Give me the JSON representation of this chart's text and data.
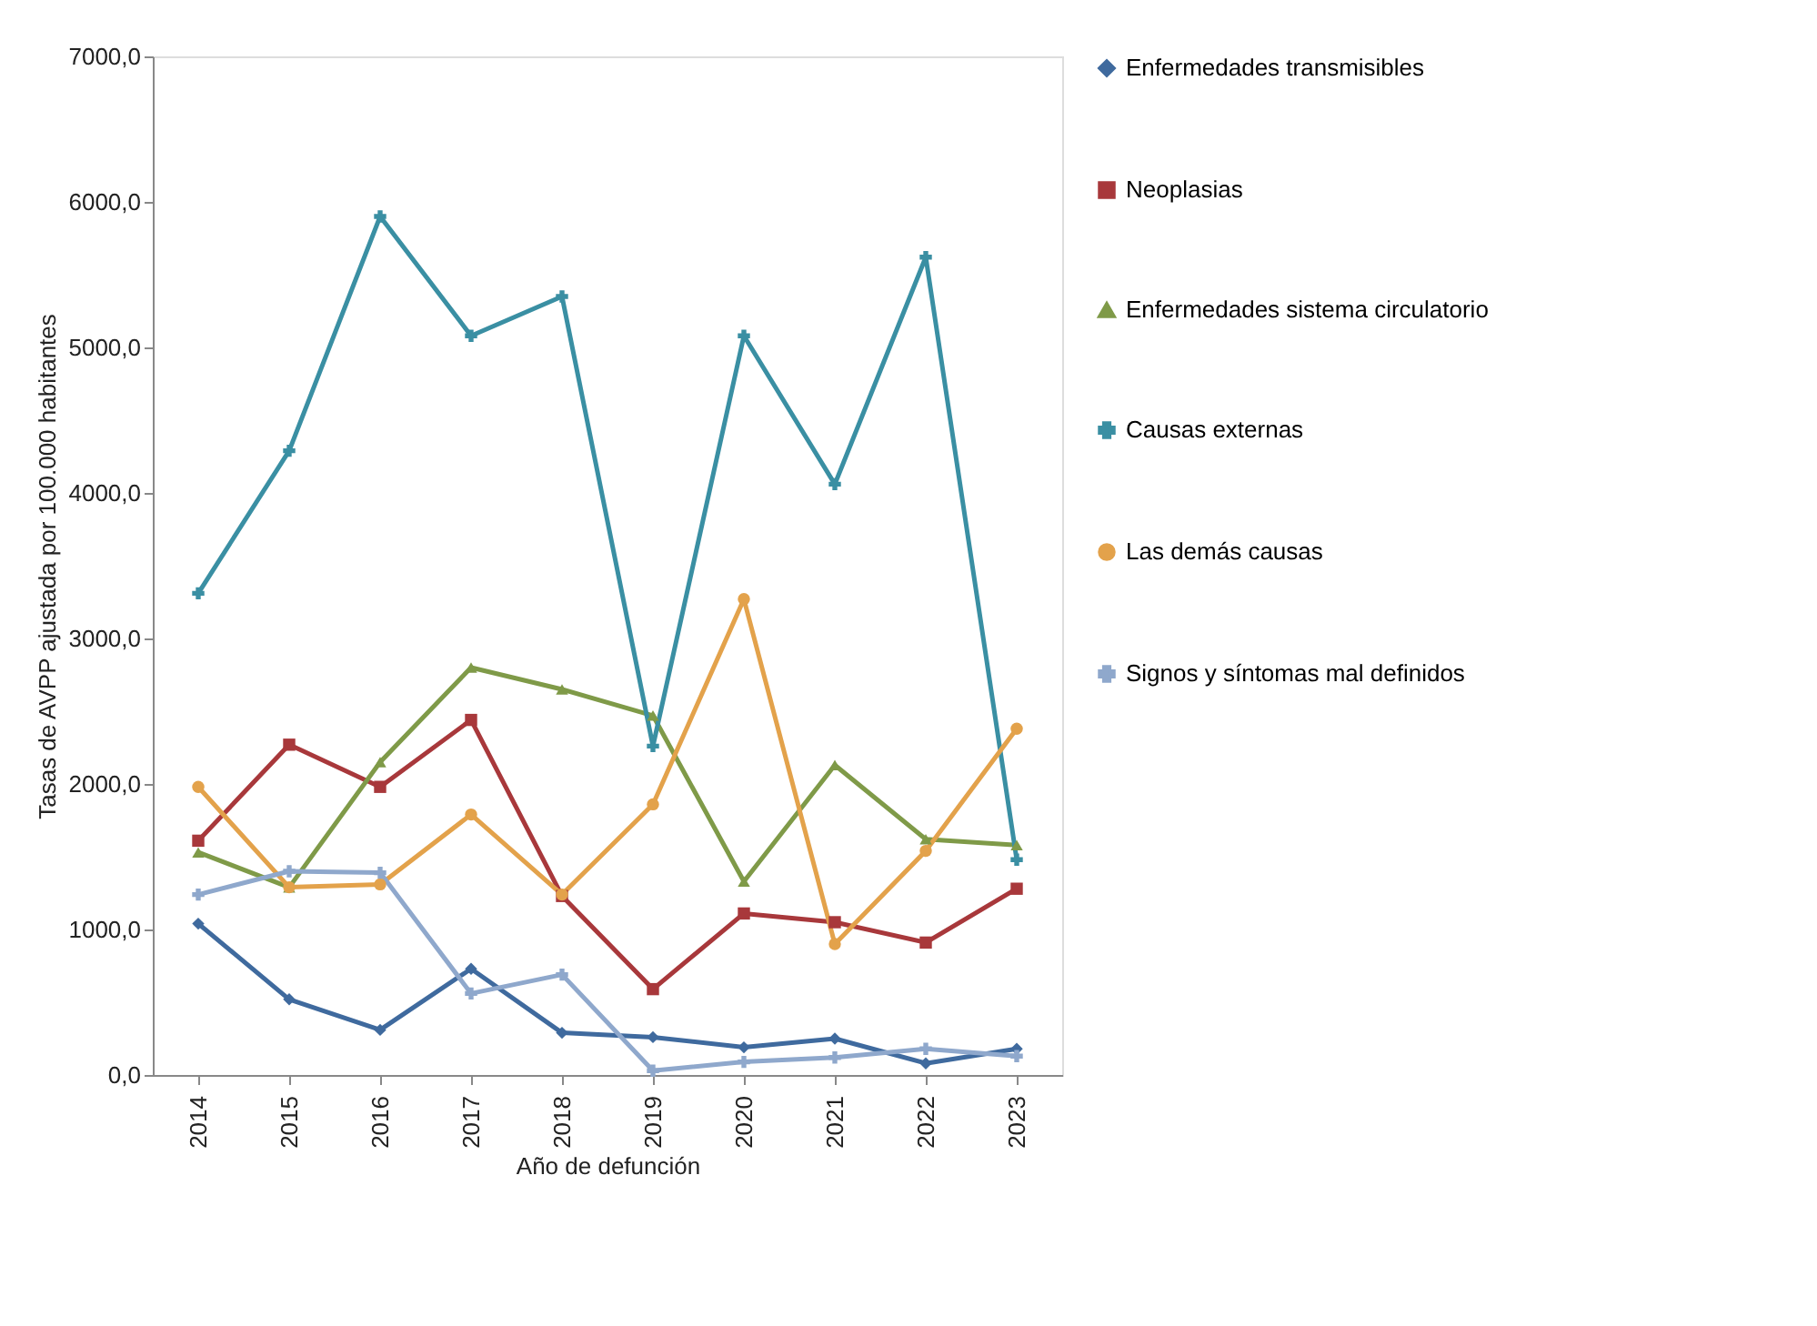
{
  "chart_data": {
    "type": "line",
    "xlabel": "Año de defunción",
    "ylabel": "Tasas de AVPP ajustada por 100.000 habitantes",
    "categories": [
      "2014",
      "2015",
      "2016",
      "2017",
      "2018",
      "2019",
      "2020",
      "2021",
      "2022",
      "2023"
    ],
    "ylim": [
      0,
      7000
    ],
    "yticks": [
      {
        "value": 0,
        "label": "0,0"
      },
      {
        "value": 1000,
        "label": "1000,0"
      },
      {
        "value": 2000,
        "label": "2000,0"
      },
      {
        "value": 3000,
        "label": "3000,0"
      },
      {
        "value": 4000,
        "label": "4000,0"
      },
      {
        "value": 5000,
        "label": "5000,0"
      },
      {
        "value": 6000,
        "label": "6000,0"
      },
      {
        "value": 7000,
        "label": "7000,0"
      }
    ],
    "grid": false,
    "legend": "right",
    "series": [
      {
        "name": "Enfermedades transmisibles",
        "color": "#3f6a9e",
        "marker": "diamond",
        "values": [
          1040,
          520,
          310,
          730,
          290,
          260,
          190,
          250,
          80,
          180
        ]
      },
      {
        "name": "Neoplasias",
        "color": "#a8383b",
        "marker": "square",
        "values": [
          1610,
          2270,
          1980,
          2440,
          1230,
          590,
          1110,
          1050,
          910,
          1280
        ]
      },
      {
        "name": "Enfermedades sistema circulatorio",
        "color": "#7f9a48",
        "marker": "triangle",
        "values": [
          1530,
          1290,
          2150,
          2800,
          2650,
          2470,
          1330,
          2130,
          1620,
          1580
        ]
      },
      {
        "name": "Causas externas",
        "color": "#3a8fa3",
        "marker": "cross",
        "values": [
          3310,
          4290,
          5900,
          5080,
          5350,
          2260,
          5080,
          4060,
          5620,
          1480
        ]
      },
      {
        "name": "Las demás causas",
        "color": "#e3a24b",
        "marker": "circle",
        "values": [
          1980,
          1290,
          1310,
          1790,
          1240,
          1860,
          3270,
          900,
          1540,
          2380
        ]
      },
      {
        "name": "Signos y síntomas mal definidos",
        "color": "#8fa8cc",
        "marker": "cross",
        "values": [
          1240,
          1400,
          1390,
          560,
          690,
          30,
          90,
          120,
          180,
          130
        ]
      }
    ]
  }
}
